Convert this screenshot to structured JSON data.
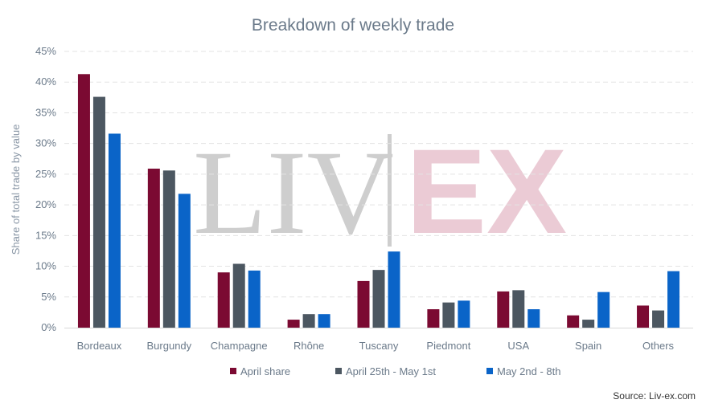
{
  "chart_data": {
    "type": "bar",
    "title": "Breakdown of weekly trade",
    "ylabel": "Share of total trade by value",
    "xlabel": "",
    "ylim": [
      0,
      45
    ],
    "yticks": [
      "0%",
      "5%",
      "10%",
      "15%",
      "20%",
      "25%",
      "30%",
      "35%",
      "40%",
      "45%"
    ],
    "categories": [
      "Bordeaux",
      "Burgundy",
      "Champagne",
      "Rhône",
      "Tuscany",
      "Piedmont",
      "USA",
      "Spain",
      "Others"
    ],
    "series": [
      {
        "name": "April share",
        "color": "#7b0a32",
        "values": [
          41.3,
          25.9,
          9.0,
          1.3,
          7.6,
          3.0,
          5.9,
          2.0,
          3.6
        ]
      },
      {
        "name": "April 25th - May 1st",
        "color": "#4c5761",
        "values": [
          37.6,
          25.6,
          10.4,
          2.2,
          9.4,
          4.1,
          6.1,
          1.3,
          2.8
        ]
      },
      {
        "name": "May 2nd - 8th",
        "color": "#0a64c8",
        "values": [
          31.6,
          21.8,
          9.3,
          2.2,
          12.4,
          4.4,
          3.0,
          5.8,
          9.2
        ]
      }
    ],
    "grid": true,
    "legend_position": "bottom"
  },
  "watermark": {
    "left": "LIV",
    "right": "EX"
  },
  "source": "Source: Liv-ex.com"
}
